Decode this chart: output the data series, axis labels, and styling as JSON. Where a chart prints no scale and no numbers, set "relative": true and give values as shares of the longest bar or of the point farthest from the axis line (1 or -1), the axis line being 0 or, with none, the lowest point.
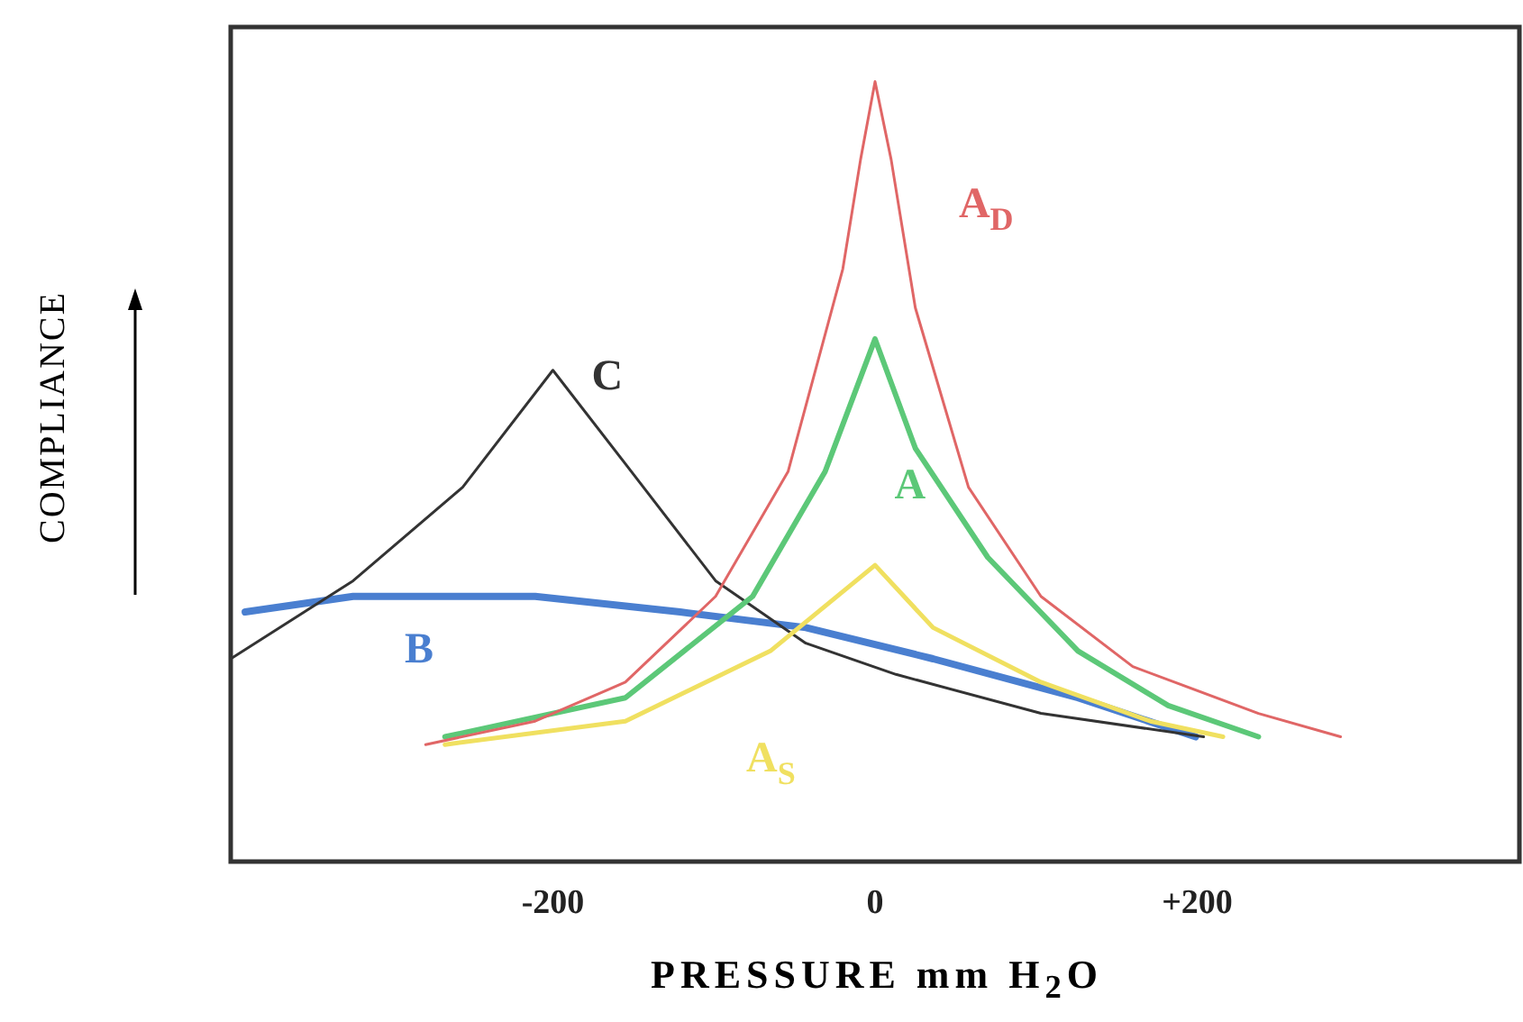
{
  "chart_data": {
    "type": "line",
    "relative": true,
    "xlabel": "PRESSURE mm H$_{2}$O",
    "ylabel": "COMPLIANCE",
    "xlim": [
      -400,
      400
    ],
    "xticks": [
      {
        "value": -200,
        "label": "-200"
      },
      0,
      {
        "value": 200,
        "label": "+200"
      }
    ],
    "grid": false,
    "legend": false,
    "marker": "none",
    "line_style": "solid",
    "tick_labels": "x",
    "series": [
      {
        "name": "A$_{D}$",
        "color": "#e06666",
        "x": [
          -279,
          -211,
          -155,
          -99,
          -54,
          -20,
          -9,
          0,
          10,
          25,
          58,
          103,
          160,
          238,
          289
        ],
        "values": [
          0.15,
          0.18,
          0.23,
          0.34,
          0.5,
          0.76,
          0.9,
          1,
          0.9,
          0.71,
          0.48,
          0.34,
          0.25,
          0.19,
          0.16
        ]
      },
      {
        "name": "A",
        "color": "#5cc878",
        "x": [
          -267,
          -155,
          -76,
          -31,
          0,
          25,
          70,
          126,
          182,
          238
        ],
        "values": [
          0.16,
          0.21,
          0.34,
          0.5,
          0.67,
          0.53,
          0.39,
          0.27,
          0.2,
          0.16
        ]
      },
      {
        "name": "A$_{S}$",
        "color": "#f0e060",
        "x": [
          -267,
          -155,
          -65,
          0,
          36,
          103,
          171,
          216
        ],
        "values": [
          0.15,
          0.18,
          0.27,
          0.38,
          0.3,
          0.23,
          0.18,
          0.16
        ]
      },
      {
        "name": "C",
        "color": "#333333",
        "x": [
          -400,
          -324,
          -256,
          -200,
          -155,
          -99,
          -43,
          13,
          103,
          204
        ],
        "values": [
          0.26,
          0.36,
          0.48,
          0.63,
          0.51,
          0.36,
          0.28,
          0.24,
          0.19,
          0.16
        ]
      },
      {
        "name": "B",
        "color": "#4a7fd0",
        "x": [
          -391,
          -324,
          -211,
          -121,
          -43,
          36,
          126,
          199
        ],
        "values": [
          0.32,
          0.34,
          0.34,
          0.32,
          0.3,
          0.26,
          0.21,
          0.16
        ]
      }
    ]
  }
}
